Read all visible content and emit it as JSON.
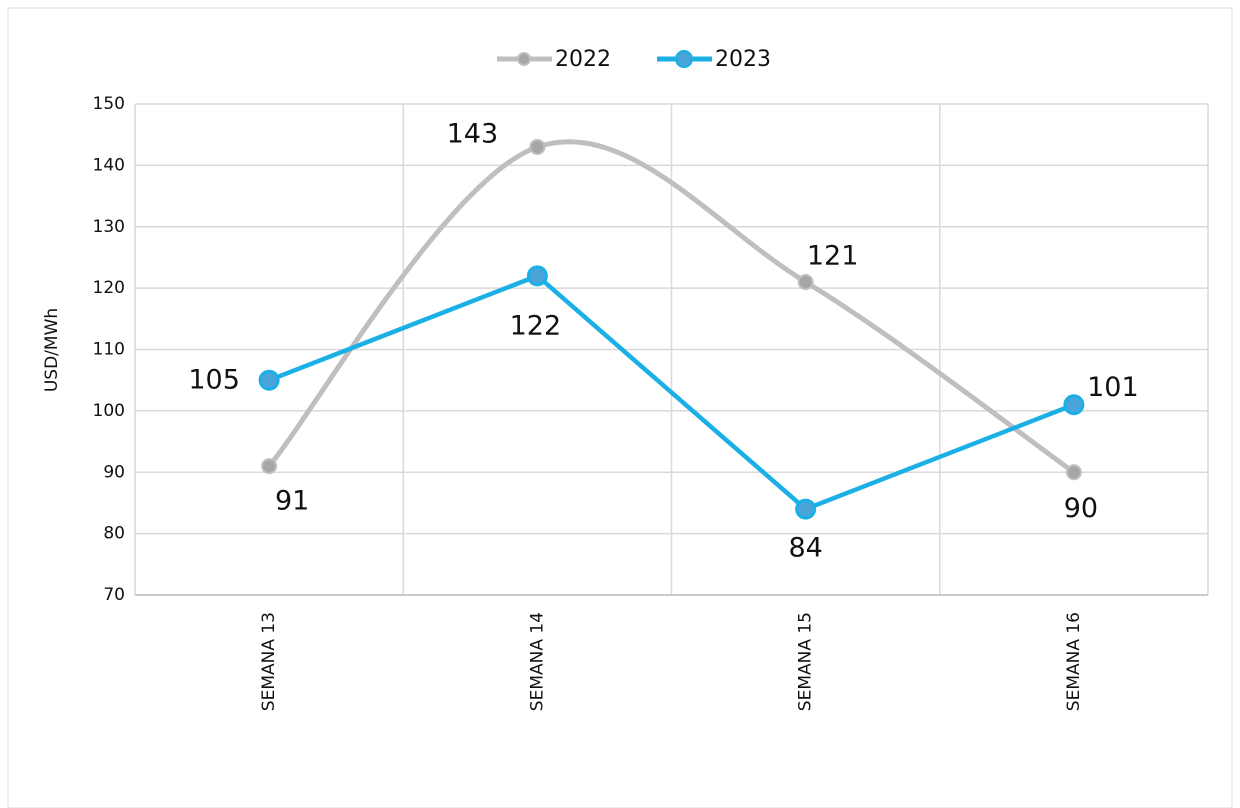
{
  "chart_data": {
    "type": "line",
    "y_label": "USD/MWh",
    "categories": [
      "SEMANA 13",
      "SEMANA 14",
      "SEMANA 15",
      "SEMANA 16"
    ],
    "series": [
      {
        "name": "2022",
        "color": "#bfbfbf",
        "smooth": true,
        "values": [
          91,
          143,
          121,
          90
        ]
      },
      {
        "name": "2023",
        "color": "#1ab0e6",
        "smooth": false,
        "values": [
          105,
          122,
          84,
          101
        ]
      }
    ],
    "ylim": [
      70,
      150
    ],
    "yticks": [
      70,
      80,
      90,
      100,
      110,
      120,
      130,
      140,
      150
    ],
    "grid": true,
    "legend": "top"
  }
}
